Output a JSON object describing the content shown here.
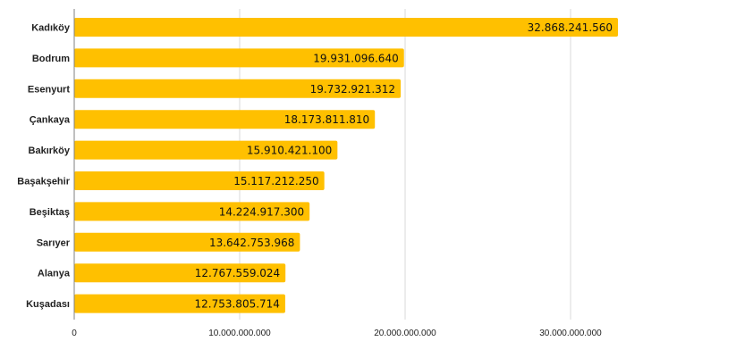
{
  "chart_data": {
    "type": "bar",
    "orientation": "horizontal",
    "title": "",
    "xlabel": "",
    "ylabel": "",
    "categories": [
      "Kadıköy",
      "Bodrum",
      "Esenyurt",
      "Çankaya",
      "Bakırköy",
      "Başakşehir",
      "Beşiktaş",
      "Sarıyer",
      "Alanya",
      "Kuşadası"
    ],
    "values": [
      32868241560,
      19931096640,
      19732921312,
      18173811810,
      15910421100,
      15117212250,
      14224917300,
      13642753968,
      12767559024,
      12753805714
    ],
    "value_labels": [
      "32.868.241.560",
      "19.931.096.640",
      "19.732.921.312",
      "18.173.811.810",
      "15.910.421.100",
      "15.117.212.250",
      "14.224.917.300",
      "13.642.753.968",
      "12.767.559.024",
      "12.753.805.714"
    ],
    "x_ticks": [
      0,
      10000000000,
      20000000000,
      30000000000
    ],
    "x_tick_labels": [
      "0",
      "10.000.000.000",
      "20.000.000.000",
      "30.000.000.000"
    ],
    "xlim": [
      0,
      40000000000
    ],
    "grid": true,
    "legend": "none",
    "bar_color": "#FFC000",
    "grid_color": "#D9D9D9",
    "axis_color": "#808080"
  }
}
